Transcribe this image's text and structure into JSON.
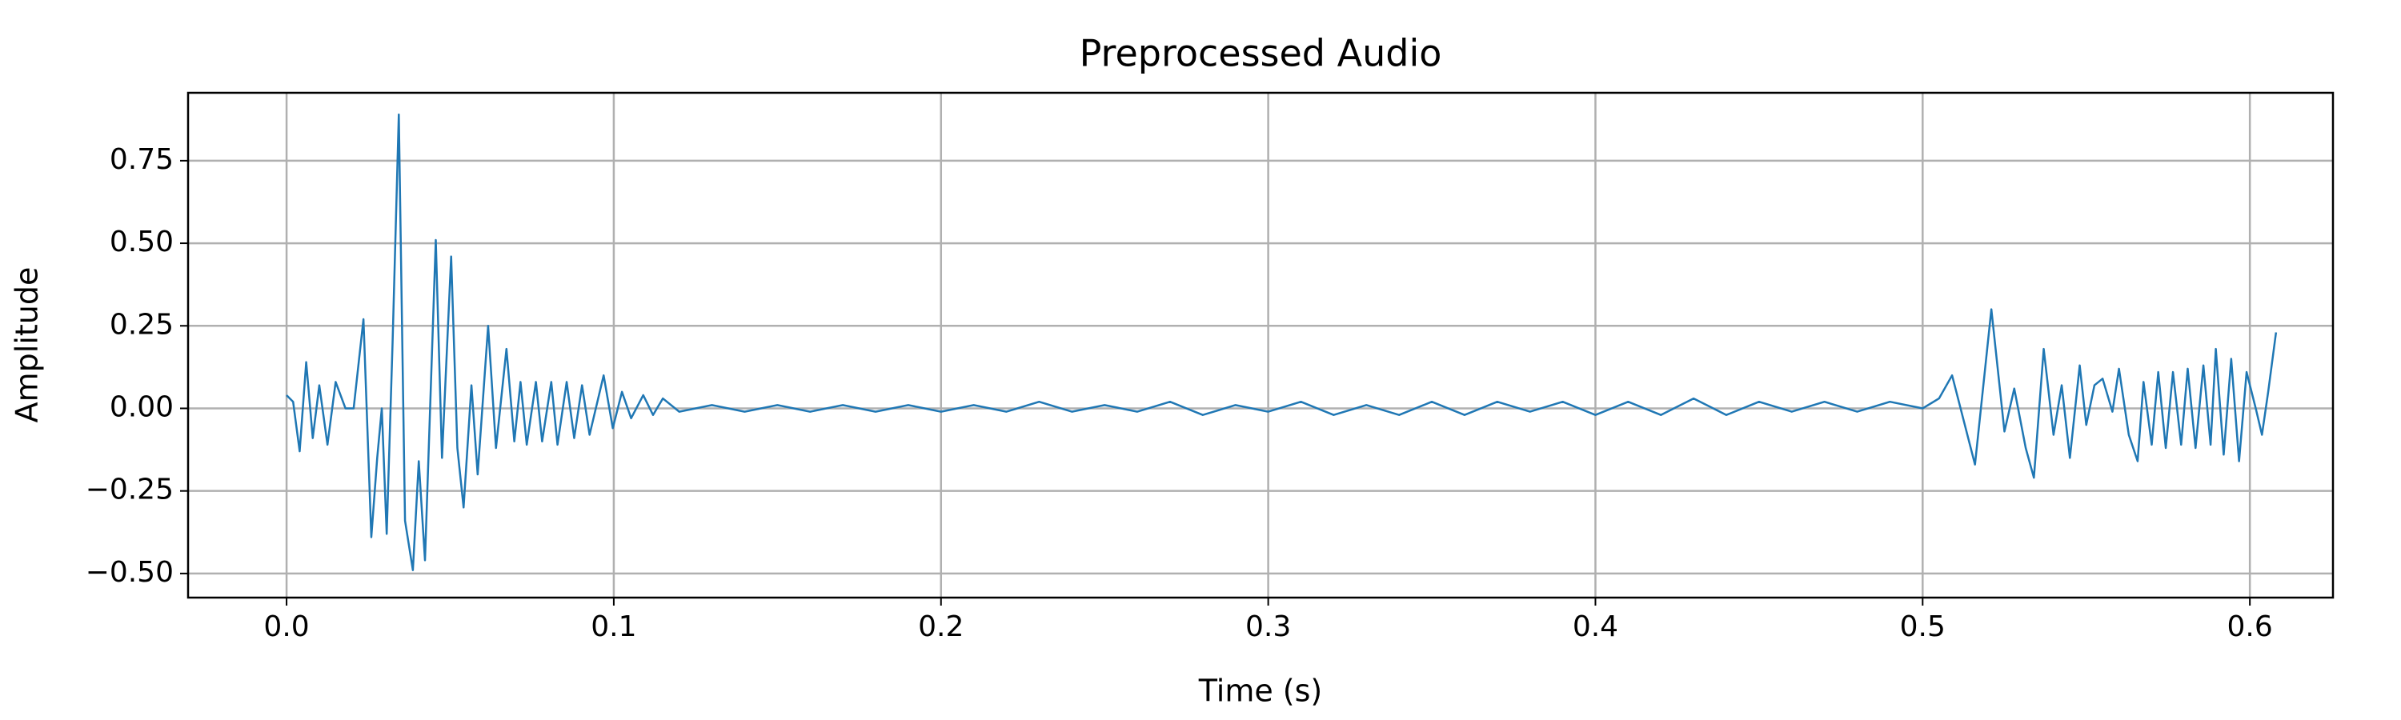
{
  "chart_data": {
    "type": "line",
    "title": "Preprocessed Audio",
    "x_label": "Time (s)",
    "y_label": "Amplitude",
    "color": "#1f77b4",
    "grid": true,
    "xlim": [
      -0.0301,
      0.6254
    ],
    "ylim": [
      -0.573,
      0.9556
    ],
    "xticks": [
      {
        "value": 0,
        "label": "0.0"
      },
      0.1,
      0.2,
      0.3,
      0.4,
      0.5,
      0.6
    ],
    "yticks": [
      {
        "value": -0.5,
        "label": "−0.50"
      },
      {
        "value": -0.25,
        "label": "−0.25"
      },
      {
        "value": 0,
        "label": "0.00"
      },
      0.25,
      {
        "value": 0.5,
        "label": "0.50"
      },
      0.75
    ],
    "x": [
      0,
      0.002,
      0.004,
      0.006,
      0.008,
      0.01,
      0.0125,
      0.015,
      0.018,
      0.0205,
      0.0235,
      0.0259,
      0.0277,
      0.0291,
      0.0306,
      0.0324,
      0.0343,
      0.0362,
      0.0386,
      0.0404,
      0.0423,
      0.0456,
      0.0475,
      0.0503,
      0.0522,
      0.0541,
      0.0565,
      0.0584,
      0.0616,
      0.064,
      0.0672,
      0.0696,
      0.0715,
      0.0734,
      0.0762,
      0.0781,
      0.0809,
      0.0828,
      0.0856,
      0.0879,
      0.0903,
      0.0926,
      0.0969,
      0.0997,
      0.1025,
      0.1053,
      0.109,
      0.112,
      0.115,
      0.12,
      0.13,
      0.14,
      0.15,
      0.16,
      0.17,
      0.18,
      0.19,
      0.2,
      0.21,
      0.22,
      0.23,
      0.24,
      0.25,
      0.26,
      0.27,
      0.28,
      0.29,
      0.3,
      0.31,
      0.32,
      0.33,
      0.34,
      0.35,
      0.36,
      0.37,
      0.38,
      0.39,
      0.4,
      0.41,
      0.42,
      0.43,
      0.44,
      0.45,
      0.46,
      0.47,
      0.48,
      0.49,
      0.5,
      0.505,
      0.509,
      0.516,
      0.521,
      0.525,
      0.528,
      0.5315,
      0.534,
      0.537,
      0.54,
      0.5425,
      0.545,
      0.548,
      0.55,
      0.5525,
      0.555,
      0.558,
      0.56,
      0.563,
      0.5657,
      0.5675,
      0.57,
      0.572,
      0.5743,
      0.5765,
      0.579,
      0.581,
      0.5834,
      0.5858,
      0.588,
      0.5896,
      0.592,
      0.5943,
      0.5967,
      0.599,
      0.6018,
      0.6037,
      0.6056,
      0.608
    ],
    "values": [
      0.04,
      0.02,
      -0.13,
      0.14,
      -0.09,
      0.07,
      -0.11,
      0.08,
      0.0,
      0.0,
      0.27,
      -0.39,
      -0.15,
      0.0,
      -0.38,
      0.2,
      0.89,
      -0.34,
      -0.49,
      -0.16,
      -0.46,
      0.51,
      -0.15,
      0.46,
      -0.12,
      -0.3,
      0.07,
      -0.2,
      0.25,
      -0.12,
      0.18,
      -0.1,
      0.08,
      -0.11,
      0.08,
      -0.1,
      0.08,
      -0.11,
      0.08,
      -0.09,
      0.07,
      -0.08,
      0.1,
      -0.06,
      0.05,
      -0.03,
      0.04,
      -0.02,
      0.03,
      -0.01,
      0.01,
      -0.01,
      0.01,
      -0.01,
      0.01,
      -0.01,
      0.01,
      -0.01,
      0.01,
      -0.01,
      0.02,
      -0.01,
      0.01,
      -0.01,
      0.02,
      -0.02,
      0.01,
      -0.01,
      0.02,
      -0.02,
      0.01,
      -0.02,
      0.02,
      -0.02,
      0.02,
      -0.01,
      0.02,
      -0.02,
      0.02,
      -0.02,
      0.03,
      -0.02,
      0.02,
      -0.01,
      0.02,
      -0.01,
      0.02,
      0.0,
      0.03,
      0.1,
      -0.17,
      0.3,
      -0.07,
      0.06,
      -0.12,
      -0.21,
      0.18,
      -0.08,
      0.07,
      -0.15,
      0.13,
      -0.05,
      0.07,
      0.09,
      -0.01,
      0.12,
      -0.08,
      -0.16,
      0.08,
      -0.11,
      0.11,
      -0.12,
      0.11,
      -0.11,
      0.12,
      -0.12,
      0.13,
      -0.11,
      0.18,
      -0.14,
      0.15,
      -0.16,
      0.11,
      0.0,
      -0.08,
      0.05,
      0.23
    ]
  }
}
